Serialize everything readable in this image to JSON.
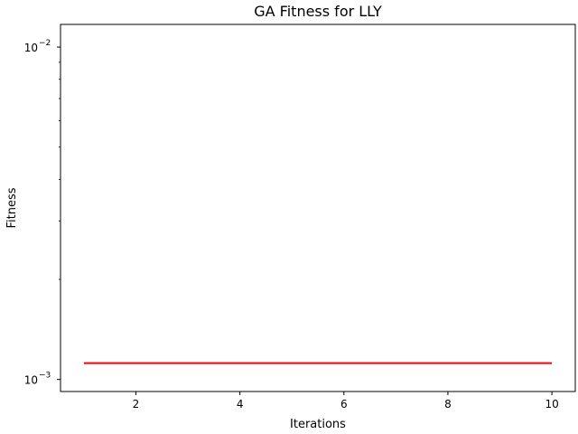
{
  "chart_data": {
    "type": "line",
    "title": "GA Fitness for LLY",
    "xlabel": "Iterations",
    "ylabel": "Fitness",
    "xlim": [
      0.55,
      10.45
    ],
    "ylim": [
      0.00092,
      0.0117
    ],
    "yscale": "log",
    "xticks": [
      2,
      4,
      6,
      8,
      10
    ],
    "yticks": [
      {
        "value": 0.001,
        "base": "10",
        "exponent": "−3"
      },
      {
        "value": 0.01,
        "base": "10",
        "exponent": "−2"
      }
    ],
    "y_minor_ticks": [
      0.002,
      0.003,
      0.004,
      0.005,
      0.006,
      0.007,
      0.008,
      0.009
    ],
    "grid": false,
    "series": [
      {
        "color": "#ff0000",
        "x": [
          1,
          2,
          3,
          4,
          5,
          6,
          7,
          8,
          9,
          10
        ],
        "y": [
          0.00112,
          0.00112,
          0.00112,
          0.00112,
          0.00112,
          0.00112,
          0.00112,
          0.00112,
          0.00112,
          0.00112
        ]
      }
    ]
  }
}
